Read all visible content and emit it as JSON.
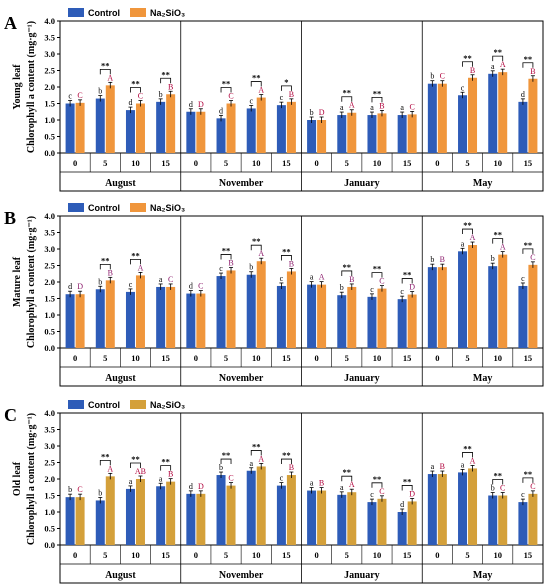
{
  "chart_data": [
    {
      "type": "bar",
      "panel_label": "A",
      "leaf_label": "Young leaf",
      "ylabel": "Chlorophyll a content (mg·g⁻¹)",
      "ylim": [
        0,
        4.0
      ],
      "yticks": [
        "0.0",
        "0.5",
        "1.0",
        "1.5",
        "2.0",
        "2.5",
        "3.0",
        "3.5",
        "4.0"
      ],
      "months": [
        "August",
        "November",
        "January",
        "May"
      ],
      "days": [
        "0",
        "5",
        "10",
        "15"
      ],
      "legend": [
        "Control",
        "Na₂SiO₃"
      ],
      "colors": {
        "control": "#2e5cb8",
        "treatment": "#f0963c"
      },
      "series": [
        {
          "name": "Control",
          "values": [
            [
              1.5,
              1.65,
              1.3,
              1.55
            ],
            [
              1.25,
              1.05,
              1.35,
              1.45
            ],
            [
              1.0,
              1.15,
              1.15,
              1.15
            ],
            [
              2.1,
              1.75,
              2.4,
              1.55
            ]
          ]
        },
        {
          "name": "Na₂SiO₃",
          "values": [
            [
              1.52,
              2.05,
              1.5,
              1.78
            ],
            [
              1.25,
              1.5,
              1.68,
              1.55
            ],
            [
              1.0,
              1.22,
              1.2,
              1.17
            ],
            [
              2.1,
              2.28,
              2.45,
              2.25
            ]
          ]
        }
      ],
      "letters_control": [
        [
          "c",
          "b",
          "d",
          "b"
        ],
        [
          "d",
          "d",
          "c",
          "c"
        ],
        [
          "b",
          "a",
          "a",
          "a"
        ],
        [
          "b",
          "c",
          "a",
          "d"
        ]
      ],
      "letters_treatment": [
        [
          "C",
          "A",
          "C",
          "B"
        ],
        [
          "D",
          "C",
          "A",
          "B"
        ],
        [
          "D",
          "A",
          "B",
          "C"
        ],
        [
          "C",
          "B",
          "A",
          "B"
        ]
      ],
      "stars": [
        [
          "",
          "**",
          "**",
          "**"
        ],
        [
          "",
          "**",
          "**",
          "*"
        ],
        [
          "",
          "**",
          "**",
          ""
        ],
        [
          "",
          "**",
          "**",
          "**"
        ]
      ]
    },
    {
      "type": "bar",
      "panel_label": "B",
      "leaf_label": "Mature leaf",
      "ylabel": "Chlorophyll a content (mg·g⁻¹)",
      "ylim": [
        0,
        4.0
      ],
      "yticks": [
        "0.0",
        "0.5",
        "1.0",
        "1.5",
        "2.0",
        "2.5",
        "3.0",
        "3.5",
        "4.0"
      ],
      "months": [
        "August",
        "November",
        "January",
        "May"
      ],
      "days": [
        "0",
        "5",
        "10",
        "15"
      ],
      "legend": [
        "Control",
        "Na₂SiO₃"
      ],
      "colors": {
        "control": "#2e5cb8",
        "treatment": "#f0963c"
      },
      "series": [
        {
          "name": "Control",
          "values": [
            [
              1.63,
              1.78,
              1.7,
              1.85
            ],
            [
              1.65,
              2.18,
              2.22,
              1.88
            ],
            [
              1.92,
              1.6,
              1.55,
              1.48
            ],
            [
              2.45,
              2.93,
              2.48,
              1.88
            ]
          ]
        },
        {
          "name": "Na₂SiO₃",
          "values": [
            [
              1.63,
              2.05,
              2.2,
              1.85
            ],
            [
              1.65,
              2.35,
              2.63,
              2.32
            ],
            [
              1.92,
              1.85,
              1.8,
              1.62
            ],
            [
              2.45,
              3.12,
              2.83,
              2.52
            ]
          ]
        }
      ],
      "letters_control": [
        [
          "d",
          "b",
          "c",
          "a"
        ],
        [
          "d",
          "c",
          "b",
          "c"
        ],
        [
          "a",
          "b",
          "c",
          "c"
        ],
        [
          "b",
          "a",
          "b",
          "c"
        ]
      ],
      "letters_treatment": [
        [
          "D",
          "B",
          "A",
          "C"
        ],
        [
          "C",
          "B",
          "A",
          "B"
        ],
        [
          "A",
          "B",
          "C",
          "D"
        ],
        [
          "B",
          "A",
          "A",
          "C"
        ]
      ],
      "stars": [
        [
          "",
          "**",
          "**",
          ""
        ],
        [
          "",
          "**",
          "**",
          "**"
        ],
        [
          "",
          "**",
          "**",
          "**"
        ],
        [
          "",
          "**",
          "**",
          "**"
        ]
      ]
    },
    {
      "type": "bar",
      "panel_label": "C",
      "leaf_label": "Old leaf",
      "ylabel": "Chlorophyll a content (mg·g⁻¹)",
      "ylim": [
        0,
        4.0
      ],
      "yticks": [
        "0.0",
        "0.5",
        "1.0",
        "1.5",
        "2.0",
        "2.5",
        "3.0",
        "3.5",
        "4.0"
      ],
      "months": [
        "August",
        "November",
        "January",
        "May"
      ],
      "days": [
        "0",
        "5",
        "10",
        "15"
      ],
      "legend": [
        "Control",
        "Na₂SiO₃"
      ],
      "colors": {
        "control": "#2e5cb8",
        "treatment": "#d4a03a"
      },
      "series": [
        {
          "name": "Control",
          "values": [
            [
              1.45,
              1.35,
              1.7,
              1.78
            ],
            [
              1.55,
              2.12,
              2.25,
              1.8
            ],
            [
              1.65,
              1.52,
              1.3,
              1.0
            ],
            [
              2.15,
              2.2,
              1.5,
              1.3
            ]
          ]
        },
        {
          "name": "Na₂SiO₃",
          "values": [
            [
              1.45,
              2.08,
              2.0,
              1.92
            ],
            [
              1.55,
              1.8,
              2.38,
              2.12
            ],
            [
              1.65,
              1.6,
              1.4,
              1.32
            ],
            [
              2.15,
              2.32,
              1.5,
              1.55
            ]
          ]
        }
      ],
      "letters_control": [
        [
          "b",
          "b",
          "a",
          "a"
        ],
        [
          "d",
          "b",
          "a",
          "c"
        ],
        [
          "a",
          "a",
          "c",
          "d"
        ],
        [
          "a",
          "a",
          "b",
          "c"
        ]
      ],
      "letters_treatment": [
        [
          "C",
          "A",
          "AB",
          "B"
        ],
        [
          "D",
          "C",
          "A",
          "B"
        ],
        [
          "B",
          "A",
          "C",
          "D"
        ],
        [
          "B",
          "A",
          "C",
          "C"
        ]
      ],
      "stars": [
        [
          "",
          "**",
          "**",
          "**"
        ],
        [
          "",
          "**",
          "**",
          "**"
        ],
        [
          "",
          "**",
          "**",
          "**"
        ],
        [
          "",
          "**",
          "**",
          "**"
        ]
      ]
    }
  ]
}
